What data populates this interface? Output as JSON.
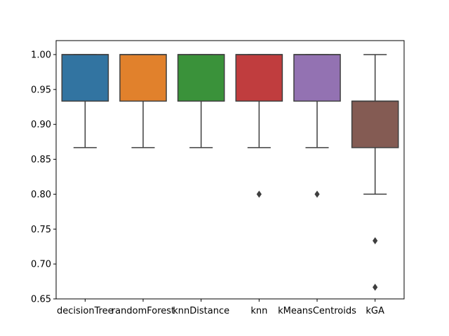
{
  "chart_data": {
    "type": "box",
    "title": "",
    "xlabel": "",
    "ylabel": "",
    "ylim": [
      0.65,
      1.02
    ],
    "yticks": [
      "0.65",
      "0.70",
      "0.75",
      "0.80",
      "0.85",
      "0.90",
      "0.95",
      "1.00"
    ],
    "grid": false,
    "categories": [
      "decisionTree",
      "randomForest",
      "knnDistance",
      "knn",
      "kMeansCentroids",
      "kGA"
    ],
    "boxes": [
      {
        "name": "decisionTree",
        "color": "#3274a1",
        "whisker_low": 0.8667,
        "q1": 0.9333,
        "median": 1.0,
        "q3": 1.0,
        "whisker_high": 1.0,
        "outliers": []
      },
      {
        "name": "randomForest",
        "color": "#e1812c",
        "whisker_low": 0.8667,
        "q1": 0.9333,
        "median": 1.0,
        "q3": 1.0,
        "whisker_high": 1.0,
        "outliers": []
      },
      {
        "name": "knnDistance",
        "color": "#3a923a",
        "whisker_low": 0.8667,
        "q1": 0.9333,
        "median": 1.0,
        "q3": 1.0,
        "whisker_high": 1.0,
        "outliers": []
      },
      {
        "name": "knn",
        "color": "#c03d3e",
        "whisker_low": 0.8667,
        "q1": 0.9333,
        "median": 1.0,
        "q3": 1.0,
        "whisker_high": 1.0,
        "outliers": [
          0.8
        ]
      },
      {
        "name": "kMeansCentroids",
        "color": "#9372b2",
        "whisker_low": 0.8667,
        "q1": 0.9333,
        "median": 1.0,
        "q3": 1.0,
        "whisker_high": 1.0,
        "outliers": [
          0.8
        ]
      },
      {
        "name": "kGA",
        "color": "#845b53",
        "whisker_low": 0.8,
        "q1": 0.8667,
        "median": 0.9333,
        "q3": 0.9333,
        "whisker_high": 1.0,
        "outliers": [
          0.7333,
          0.6667
        ]
      }
    ]
  }
}
